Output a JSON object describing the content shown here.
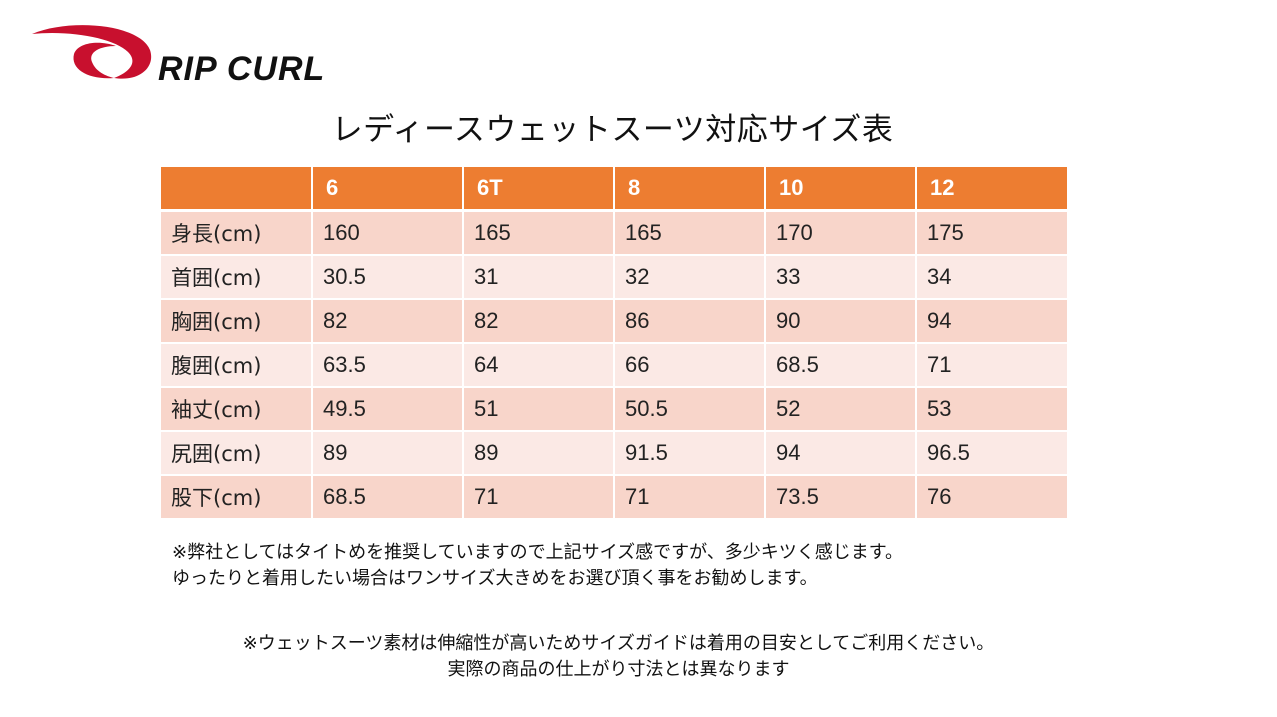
{
  "brand": {
    "name": "RIP CURL",
    "colors": {
      "swoosh": "#c8102e",
      "wordmark": "#111111"
    }
  },
  "title": "レディースウェットスーツ対応サイズ表",
  "table": {
    "header_color": "#ed7d31",
    "odd_row_color": "#f8d5ca",
    "even_row_color": "#fbe9e5",
    "columns": [
      "",
      "6",
      "6T",
      "8",
      "10",
      "12"
    ],
    "rows": [
      {
        "label": "身長(cm)",
        "values": [
          "160",
          "165",
          "165",
          "170",
          "175"
        ]
      },
      {
        "label": "首囲(cm)",
        "values": [
          "30.5",
          "31",
          "32",
          "33",
          "34"
        ]
      },
      {
        "label": "胸囲(cm)",
        "values": [
          "82",
          "82",
          "86",
          "90",
          "94"
        ]
      },
      {
        "label": "腹囲(cm)",
        "values": [
          "63.5",
          "64",
          "66",
          "68.5",
          "71"
        ]
      },
      {
        "label": "袖丈(cm)",
        "values": [
          "49.5",
          "51",
          "50.5",
          "52",
          "53"
        ]
      },
      {
        "label": "尻囲(cm)",
        "values": [
          "89",
          "89",
          "91.5",
          "94",
          "96.5"
        ]
      },
      {
        "label": "股下(cm)",
        "values": [
          "68.5",
          "71",
          "71",
          "73.5",
          "76"
        ]
      }
    ]
  },
  "notes": {
    "fit_line1": "※弊社としてはタイトめを推奨していますので上記サイズ感ですが、多少キツく感じます。",
    "fit_line2": "ゆったりと着用したい場合はワンサイズ大きめをお選び頂く事をお勧めします。",
    "material_line1": "※ウェットスーツ素材は伸縮性が高いためサイズガイドは着用の目安としてご利用ください。",
    "material_line2": "実際の商品の仕上がり寸法とは異なります"
  }
}
